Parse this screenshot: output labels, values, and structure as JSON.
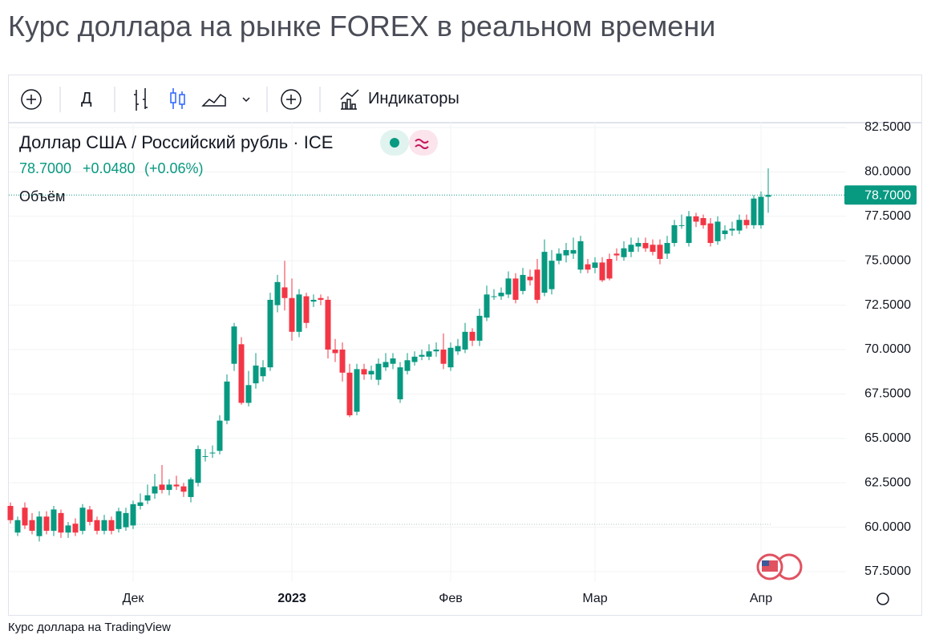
{
  "title": "Курс доллара на рынке FOREX в реальном времени",
  "toolbar": {
    "interval": "Д",
    "indicators": "Индикаторы"
  },
  "footer": "Курс доллара на TradingView",
  "chart_data": {
    "type": "candlestick",
    "symbol": "Доллар США / Российский рубль · ICE",
    "price": "78.7000",
    "change": "+0.0480",
    "change_pct": "(+0.06%)",
    "volume_label": "Объём",
    "last_price": {
      "value": 78.7,
      "label": "78.7000"
    },
    "up_color": "#089981",
    "down_color": "#f23645",
    "ylim": [
      57.5,
      82.5
    ],
    "yticks": [
      {
        "value": 57.5,
        "label": "57.5000"
      },
      {
        "value": 60,
        "label": "60.0000"
      },
      {
        "value": 62.5,
        "label": "62.5000"
      },
      {
        "value": 65,
        "label": "65.0000"
      },
      {
        "value": 67.5,
        "label": "67.5000"
      },
      {
        "value": 70,
        "label": "70.0000"
      },
      {
        "value": 72.5,
        "label": "72.5000"
      },
      {
        "value": 75,
        "label": "75.0000"
      },
      {
        "value": 77.5,
        "label": "77.5000"
      },
      {
        "value": 80,
        "label": "80.0000"
      },
      {
        "value": 82.5,
        "label": "82.5000"
      }
    ],
    "grid": true,
    "categories": [
      null,
      null,
      null,
      null,
      null,
      null,
      null,
      null,
      null,
      null,
      null,
      null,
      null,
      null,
      null,
      null,
      null,
      "Дек",
      null,
      null,
      null,
      null,
      null,
      null,
      null,
      null,
      null,
      null,
      null,
      null,
      null,
      null,
      null,
      null,
      null,
      null,
      null,
      null,
      null,
      "2023",
      null,
      null,
      null,
      null,
      null,
      null,
      null,
      null,
      null,
      null,
      null,
      null,
      null,
      null,
      null,
      null,
      null,
      null,
      null,
      null,
      null,
      "Фев",
      null,
      null,
      null,
      null,
      null,
      null,
      null,
      null,
      null,
      null,
      null,
      null,
      null,
      null,
      null,
      null,
      null,
      null,
      null,
      "Мар",
      null,
      null,
      null,
      null,
      null,
      null,
      null,
      null,
      null,
      null,
      null,
      null,
      null,
      null,
      null,
      null,
      null,
      null,
      null,
      null,
      null,
      null,
      "Апр",
      null
    ],
    "open": [
      61.2,
      59.7,
      61.1,
      60.4,
      59.5,
      60.6,
      59.8,
      60.8,
      59.7,
      60.2,
      59.8,
      61.0,
      60.4,
      59.8,
      60.4,
      59.9,
      60.0,
      60.1,
      61.2,
      61.5,
      61.9,
      62.4,
      62.1,
      62.4,
      62.3,
      61.7,
      62.5,
      64.0,
      64.2,
      64.3,
      66.0,
      69.2,
      70.3,
      67.0,
      68.1,
      68.5,
      69.0,
      72.5,
      73.5,
      72.9,
      71.0,
      73.0,
      72.7,
      72.9,
      72.8,
      70.0,
      70.0,
      68.7,
      66.5,
      68.9,
      68.6,
      68.3,
      69.0,
      69.2,
      67.2,
      68.8,
      69.3,
      69.6,
      69.6,
      69.9,
      70.0,
      69.0,
      69.9,
      70.0,
      71.0,
      70.5,
      71.8,
      73.0,
      73.0,
      73.1,
      74.0,
      73.3,
      74.1,
      74.5,
      73.2,
      73.4,
      75.0,
      75.3,
      75.4,
      74.5,
      74.8,
      74.6,
      74.9,
      75.1,
      75.4,
      75.2,
      75.5,
      75.8,
      76.0,
      75.9,
      75.9,
      75.4,
      76.0,
      77.0,
      76.0,
      77.5,
      77.4,
      77.1,
      76.1,
      76.5,
      76.7,
      76.7,
      77.3,
      77.0,
      77.0,
      78.6
    ],
    "high": [
      61.4,
      60.6,
      61.4,
      60.8,
      60.9,
      60.9,
      61.2,
      61.0,
      60.3,
      60.5,
      61.3,
      61.2,
      60.6,
      60.7,
      60.6,
      61.1,
      61.1,
      61.5,
      61.9,
      62.4,
      63.0,
      63.5,
      62.7,
      62.9,
      62.5,
      62.8,
      64.6,
      64.4,
      64.6,
      66.3,
      68.6,
      71.5,
      70.7,
      68.8,
      69.8,
      69.4,
      73.2,
      74.2,
      75.0,
      74.0,
      73.4,
      73.2,
      73.1,
      73.1,
      73.0,
      70.6,
      70.4,
      69.2,
      69.2,
      69.2,
      69.1,
      69.5,
      69.8,
      69.8,
      69.3,
      69.8,
      69.9,
      70.0,
      70.3,
      70.4,
      70.9,
      70.4,
      70.6,
      71.5,
      71.2,
      72.3,
      73.6,
      73.4,
      73.5,
      74.4,
      74.3,
      74.6,
      74.5,
      75.1,
      76.2,
      75.6,
      75.7,
      76.0,
      76.3,
      76.4,
      75.1,
      75.2,
      75.2,
      75.4,
      75.7,
      76.1,
      76.3,
      76.3,
      76.3,
      76.2,
      76.2,
      76.4,
      77.3,
      77.6,
      77.8,
      77.7,
      77.6,
      77.4,
      77.5,
      77.0,
      77.2,
      77.6,
      77.6,
      78.7,
      78.9,
      80.2
    ],
    "low": [
      60.2,
      59.5,
      59.9,
      59.6,
      59.2,
      59.6,
      59.5,
      59.4,
      59.4,
      59.5,
      59.6,
      60.1,
      59.6,
      59.6,
      59.6,
      59.7,
      59.8,
      59.9,
      61.0,
      61.3,
      61.6,
      61.9,
      61.8,
      62.1,
      61.7,
      61.4,
      62.3,
      63.7,
      63.9,
      64.1,
      65.8,
      68.8,
      66.9,
      66.8,
      67.8,
      68.2,
      68.8,
      72.1,
      72.2,
      70.5,
      70.7,
      71.2,
      72.4,
      72.5,
      69.5,
      69.3,
      68.2,
      66.2,
      66.3,
      68.3,
      68.3,
      68.0,
      68.8,
      68.9,
      67.0,
      68.6,
      69.1,
      69.4,
      69.4,
      69.6,
      68.9,
      68.8,
      69.7,
      69.8,
      70.2,
      70.2,
      71.6,
      72.8,
      72.8,
      72.9,
      72.6,
      73.1,
      73.6,
      72.6,
      73.0,
      73.1,
      74.8,
      74.9,
      75.1,
      74.3,
      74.3,
      74.3,
      73.8,
      73.9,
      75.0,
      75.0,
      75.2,
      75.5,
      75.5,
      75.3,
      74.8,
      75.1,
      75.8,
      76.8,
      75.8,
      76.9,
      76.8,
      75.8,
      75.9,
      76.2,
      76.4,
      76.5,
      76.8,
      76.8,
      76.8,
      77.7
    ],
    "close": [
      60.4,
      60.4,
      60.1,
      59.8,
      60.6,
      59.8,
      61.0,
      59.7,
      60.1,
      59.7,
      61.1,
      60.3,
      59.8,
      60.4,
      59.8,
      60.9,
      60.8,
      61.3,
      61.4,
      61.8,
      62.3,
      62.1,
      62.4,
      62.3,
      62.0,
      62.7,
      64.4,
      64.0,
      64.2,
      66.0,
      68.2,
      71.3,
      67.0,
      68.0,
      69.1,
      69.0,
      72.8,
      73.8,
      72.9,
      71.0,
      73.1,
      71.5,
      72.8,
      72.8,
      70.0,
      69.8,
      68.7,
      66.3,
      68.9,
      68.6,
      68.8,
      69.2,
      69.3,
      69.5,
      69.0,
      69.4,
      69.6,
      69.7,
      69.9,
      70.0,
      69.2,
      70.1,
      70.2,
      71.0,
      70.5,
      71.9,
      73.1,
      73.0,
      73.2,
      74.0,
      72.8,
      74.2,
      73.9,
      72.8,
      75.5,
      75.0,
      75.4,
      75.6,
      75.6,
      76.1,
      74.5,
      74.9,
      73.9,
      74.0,
      75.3,
      75.7,
      75.9,
      76.0,
      75.7,
      75.5,
      75.1,
      76.0,
      77.0,
      77.0,
      77.5,
      77.2,
      77.0,
      76.0,
      77.2,
      76.7,
      76.8,
      77.3,
      77.0,
      78.5,
      78.6,
      78.7
    ]
  }
}
